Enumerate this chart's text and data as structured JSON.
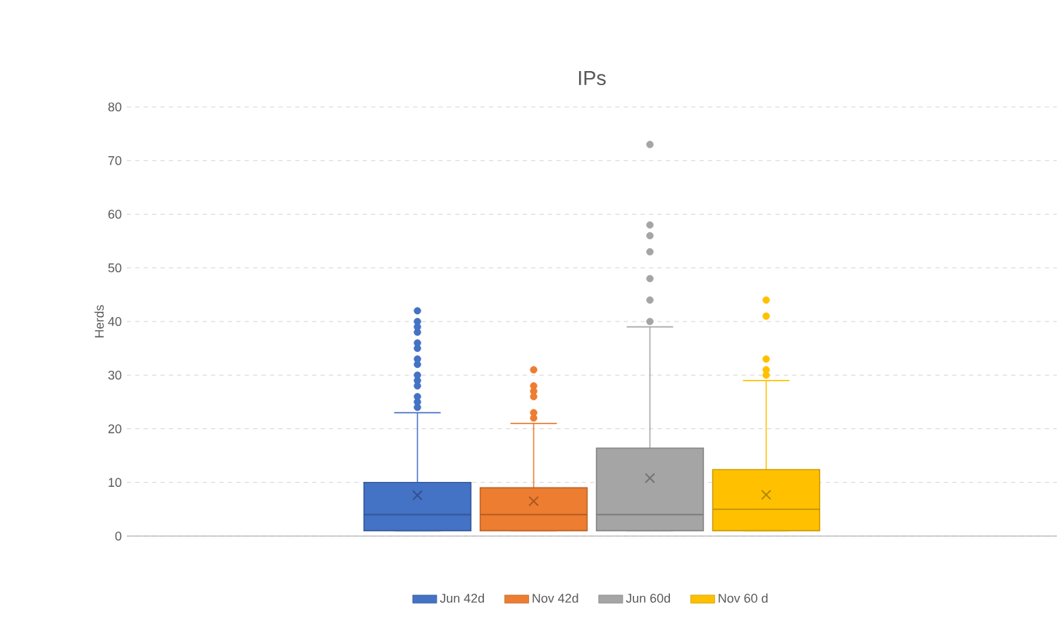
{
  "chart_data": {
    "type": "box",
    "title": "IPs",
    "ylabel": "Herds",
    "categories": [
      null
    ],
    "ylim": [
      0,
      80
    ],
    "yticks": [
      0,
      10,
      20,
      30,
      40,
      50,
      60,
      70,
      80
    ],
    "grid": "y",
    "legend": "bottom",
    "marker": "circle",
    "series": [
      {
        "name": "Jun 42d",
        "color": "#4472c4",
        "boxes": [
          {
            "low": 1,
            "q1": 1,
            "median": 4,
            "q3": 10,
            "high": 23,
            "mean": 7.6,
            "outliers": [
              24,
              25,
              26,
              28,
              29,
              30,
              32,
              33,
              35,
              36,
              38,
              39,
              40,
              42
            ]
          }
        ]
      },
      {
        "name": "Nov 42d",
        "color": "#ed7d31",
        "boxes": [
          {
            "low": 1,
            "q1": 1,
            "median": 4,
            "q3": 9,
            "high": 21,
            "mean": 6.5,
            "outliers": [
              22,
              23,
              26,
              27,
              28,
              31
            ]
          }
        ]
      },
      {
        "name": "Jun 60d",
        "color": "#a5a5a5",
        "boxes": [
          {
            "low": 1,
            "q1": 1,
            "median": 4,
            "q3": 16.4,
            "high": 39,
            "mean": 10.8,
            "outliers": [
              40,
              44,
              48,
              53,
              56,
              58,
              73
            ]
          }
        ]
      },
      {
        "name": "Nov 60 d",
        "color": "#ffc000",
        "boxes": [
          {
            "low": 1,
            "q1": 1,
            "median": 5,
            "q3": 12.4,
            "high": 29,
            "mean": 7.7,
            "outliers": [
              30,
              31,
              33,
              41,
              44
            ]
          }
        ]
      }
    ]
  }
}
